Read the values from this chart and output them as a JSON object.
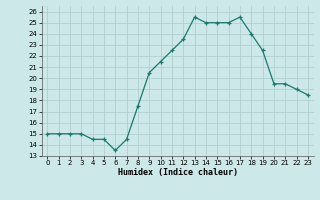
{
  "x": [
    0,
    1,
    2,
    3,
    4,
    5,
    6,
    7,
    8,
    9,
    10,
    11,
    12,
    13,
    14,
    15,
    16,
    17,
    18,
    19,
    20,
    21,
    22,
    23
  ],
  "y": [
    15,
    15,
    15,
    15,
    14.5,
    14.5,
    13.5,
    14.5,
    17.5,
    20.5,
    21.5,
    22.5,
    23.5,
    25.5,
    25,
    25,
    25,
    25.5,
    24,
    22.5,
    19.5,
    19.5,
    19,
    18.5
  ],
  "xlabel": "Humidex (Indice chaleur)",
  "line_color": "#1a7a6e",
  "bg_color": "#cce8e8",
  "grid_color": "#b0d0d0",
  "ylim": [
    13,
    26.5
  ],
  "xlim": [
    -0.5,
    23.5
  ],
  "yticks": [
    13,
    14,
    15,
    16,
    17,
    18,
    19,
    20,
    21,
    22,
    23,
    24,
    25,
    26
  ],
  "xticks": [
    0,
    1,
    2,
    3,
    4,
    5,
    6,
    7,
    8,
    9,
    10,
    11,
    12,
    13,
    14,
    15,
    16,
    17,
    18,
    19,
    20,
    21,
    22,
    23
  ]
}
